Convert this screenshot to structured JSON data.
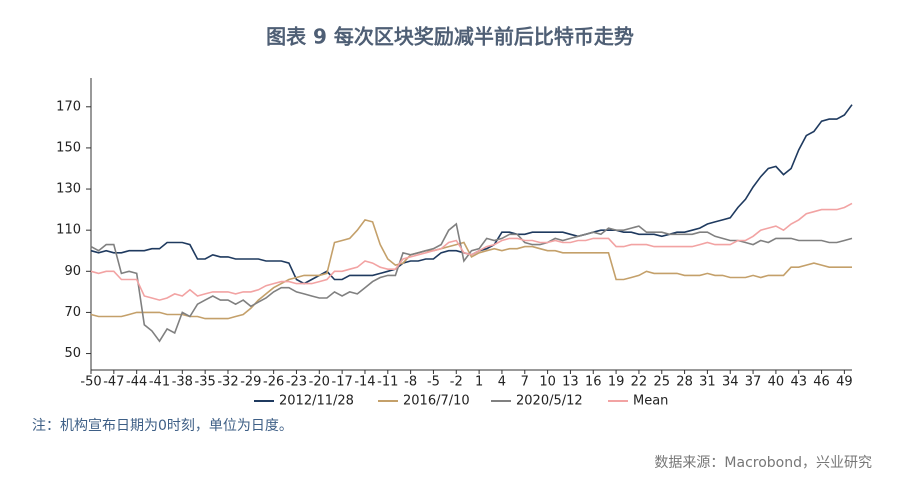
{
  "chart_data": {
    "type": "line",
    "title": "图表 9 每次区块奖励减半前后比特币走势",
    "note": "注：机构宣布日期为0时刻，单位为日度。",
    "source": "数据来源：Macrobond，兴业研究",
    "x": [
      -50,
      -49,
      -48,
      -47,
      -46,
      -45,
      -44,
      -43,
      -42,
      -41,
      -40,
      -39,
      -38,
      -37,
      -36,
      -35,
      -34,
      -33,
      -32,
      -31,
      -30,
      -29,
      -28,
      -27,
      -26,
      -25,
      -24,
      -23,
      -22,
      -21,
      -20,
      -19,
      -18,
      -17,
      -16,
      -15,
      -14,
      -13,
      -12,
      -11,
      -10,
      -9,
      -8,
      -7,
      -6,
      -5,
      -4,
      -3,
      -2,
      -1,
      0,
      1,
      2,
      3,
      4,
      5,
      6,
      7,
      8,
      9,
      10,
      11,
      12,
      13,
      14,
      15,
      16,
      17,
      18,
      19,
      20,
      21,
      22,
      23,
      24,
      25,
      26,
      27,
      28,
      29,
      30,
      31,
      32,
      33,
      34,
      35,
      36,
      37,
      38,
      39,
      40,
      41,
      42,
      43,
      44,
      45,
      46,
      47,
      48,
      49,
      50
    ],
    "series": [
      {
        "name": "2012/11/28",
        "color": "#1f3a5f",
        "values": [
          100,
          99,
          100,
          99,
          99,
          100,
          100,
          100,
          101,
          101,
          104,
          104,
          104,
          103,
          96,
          96,
          98,
          97,
          97,
          96,
          96,
          96,
          96,
          95,
          95,
          95,
          94,
          86,
          84,
          86,
          88,
          90,
          86,
          86,
          88,
          88,
          88,
          88,
          89,
          90,
          91,
          94,
          95,
          95,
          96,
          96,
          99,
          100,
          100,
          99,
          98,
          100,
          101,
          103,
          109,
          109,
          108,
          108,
          109,
          109,
          109,
          109,
          109,
          108,
          107,
          108,
          109,
          110,
          110,
          110,
          109,
          109,
          108,
          108,
          108,
          107,
          108,
          109,
          109,
          110,
          111,
          113,
          114,
          115,
          116,
          121,
          125,
          131,
          136,
          140,
          141,
          137,
          140,
          149,
          156,
          158,
          163,
          164,
          164,
          166,
          171
        ]
      },
      {
        "name": "2016/7/10",
        "color": "#c4a06a",
        "values": [
          69,
          68,
          68,
          68,
          68,
          69,
          70,
          70,
          70,
          70,
          69,
          69,
          69,
          68,
          68,
          67,
          67,
          67,
          67,
          68,
          69,
          72,
          76,
          79,
          82,
          84,
          86,
          87,
          88,
          88,
          88,
          89,
          104,
          105,
          106,
          110,
          115,
          114,
          103,
          96,
          93,
          94,
          98,
          99,
          100,
          100,
          101,
          102,
          103,
          104,
          97,
          99,
          100,
          101,
          100,
          101,
          101,
          102,
          102,
          101,
          100,
          100,
          99,
          99,
          99,
          99,
          99,
          99,
          99,
          86,
          86,
          87,
          88,
          90,
          89,
          89,
          89,
          89,
          88,
          88,
          88,
          89,
          88,
          88,
          87,
          87,
          87,
          88,
          87,
          88,
          88,
          88,
          92,
          92,
          93,
          94,
          93,
          92,
          92,
          92,
          92
        ]
      },
      {
        "name": "2020/5/12",
        "color": "#808080",
        "values": [
          102,
          100,
          103,
          103,
          89,
          90,
          89,
          64,
          61,
          56,
          62,
          60,
          70,
          68,
          74,
          76,
          78,
          76,
          76,
          74,
          76,
          73,
          75,
          77,
          80,
          82,
          82,
          80,
          79,
          78,
          77,
          77,
          80,
          78,
          80,
          79,
          82,
          85,
          87,
          88,
          88,
          99,
          98,
          99,
          100,
          101,
          103,
          110,
          113,
          95,
          100,
          101,
          106,
          105,
          106,
          108,
          108,
          104,
          103,
          103,
          104,
          106,
          105,
          106,
          107,
          108,
          109,
          108,
          111,
          110,
          110,
          111,
          112,
          109,
          109,
          109,
          108,
          108,
          108,
          108,
          109,
          109,
          107,
          106,
          105,
          105,
          104,
          103,
          105,
          104,
          106,
          106,
          106,
          105,
          105,
          105,
          105,
          104,
          104,
          105,
          106
        ]
      },
      {
        "name": "Mean",
        "color": "#f2a3a3",
        "values": [
          90,
          89,
          90,
          90,
          86,
          86,
          86,
          78,
          77,
          76,
          77,
          79,
          78,
          81,
          78,
          79,
          80,
          80,
          80,
          79,
          80,
          80,
          81,
          83,
          84,
          85,
          85,
          84,
          84,
          84,
          85,
          86,
          90,
          90,
          91,
          92,
          95,
          94,
          92,
          91,
          91,
          96,
          97,
          98,
          99,
          100,
          101,
          104,
          105,
          99,
          98,
          100,
          102,
          103,
          105,
          106,
          106,
          105,
          105,
          104,
          104,
          105,
          104,
          104,
          105,
          105,
          106,
          106,
          106,
          102,
          102,
          103,
          103,
          103,
          102,
          102,
          102,
          102,
          102,
          102,
          103,
          104,
          103,
          103,
          103,
          105,
          105,
          107,
          110,
          111,
          112,
          110,
          113,
          115,
          118,
          119,
          120,
          120,
          120,
          121,
          123
        ]
      }
    ],
    "xlim": [
      -50,
      50
    ],
    "xticks": [
      -50,
      -47,
      -44,
      -41,
      -38,
      -35,
      -32,
      -29,
      -26,
      -23,
      -20,
      -17,
      -14,
      -11,
      -8,
      -5,
      -2,
      1,
      4,
      7,
      10,
      13,
      16,
      19,
      22,
      25,
      28,
      31,
      34,
      37,
      40,
      43,
      46,
      49
    ],
    "ylim": [
      42,
      184
    ],
    "yticks": [
      50,
      70,
      90,
      110,
      130,
      150,
      170
    ],
    "legend": "bottom"
  }
}
